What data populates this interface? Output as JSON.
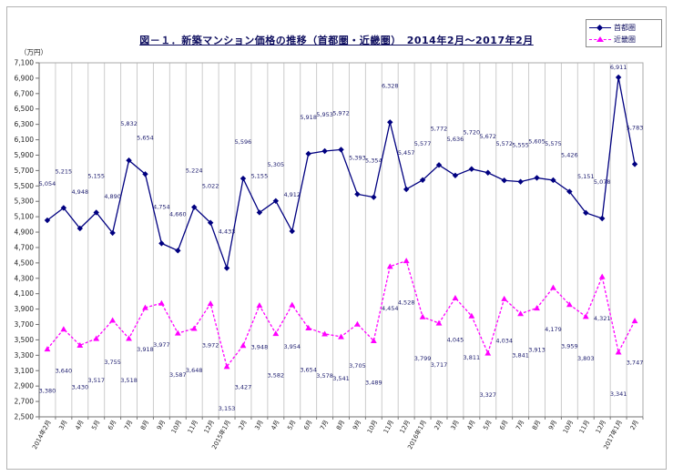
{
  "title": "図－１．新築マンション価格の推移（首都圏・近畿圏）　2014年2月～2017年2月",
  "y_axis_unit": "（万円）",
  "legend": {
    "position": "top-right",
    "items": [
      {
        "label": "首都圏",
        "color": "#000080",
        "marker": "diamond",
        "line": "solid"
      },
      {
        "label": "近畿圏",
        "color": "#ff00ff",
        "marker": "triangle",
        "line": "dashed"
      }
    ]
  },
  "chart_data": {
    "type": "line",
    "x": [
      "2014年2月",
      "3月",
      "4月",
      "5月",
      "6月",
      "7月",
      "8月",
      "9月",
      "10月",
      "11月",
      "12月",
      "2015年1月",
      "2月",
      "3月",
      "4月",
      "5月",
      "6月",
      "7月",
      "8月",
      "9月",
      "10月",
      "11月",
      "12月",
      "2016年1月",
      "2月",
      "3月",
      "4月",
      "5月",
      "6月",
      "7月",
      "8月",
      "9月",
      "10月",
      "11月",
      "12月",
      "2017年1月",
      "2月"
    ],
    "series": [
      {
        "name": "首都圏",
        "color": "#000080",
        "marker": "diamond",
        "line": "solid",
        "values": [
          5054,
          5215,
          4948,
          5155,
          4890,
          5832,
          5654,
          4754,
          4660,
          5224,
          5022,
          4433,
          5596,
          5155,
          5305,
          4912,
          5918,
          5953,
          5972,
          5393,
          5354,
          6328,
          5457,
          5577,
          5772,
          5636,
          5720,
          5672,
          5572,
          5555,
          5605,
          5575,
          5426,
          5151,
          5078,
          6911,
          5783
        ]
      },
      {
        "name": "近畿圏",
        "color": "#ff00ff",
        "marker": "triangle",
        "line": "dashed",
        "values": [
          3380,
          3640,
          3430,
          3517,
          3755,
          3518,
          3918,
          3977,
          3587,
          3648,
          3972,
          3153,
          3427,
          3948,
          3582,
          3954,
          3654,
          3578,
          3541,
          3705,
          3489,
          4454,
          4528,
          3799,
          3717,
          4045,
          3811,
          3327,
          4034,
          3841,
          3913,
          4179,
          3959,
          3803,
          4321,
          3341,
          3747
        ]
      }
    ],
    "ylim": [
      2500,
      7100
    ],
    "ytick_step": 200,
    "grid": "vertical-only",
    "legend_position": "top-right",
    "xlabel": "",
    "ylabel": "（万円）"
  }
}
